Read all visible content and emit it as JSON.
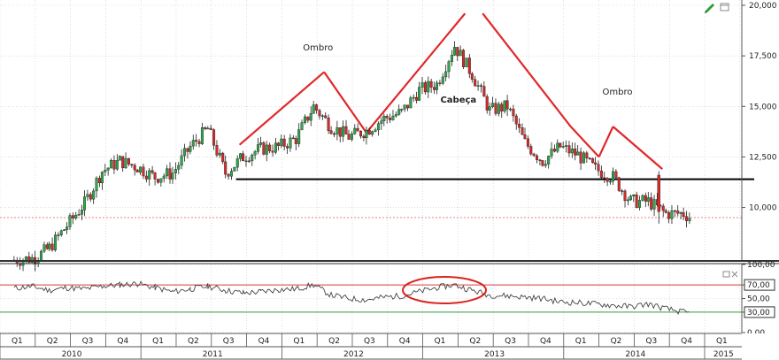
{
  "toolbar": {
    "pencil_icon": "pencil-icon",
    "window_icon": "window-icon"
  },
  "chart_data": [
    {
      "type": "candlestick",
      "title": "",
      "xlabel": "",
      "ylabel": "",
      "ylim": [
        7400,
        20000
      ],
      "yticks": [
        10000,
        12500,
        15000,
        17500,
        20000
      ],
      "ytick_labels": [
        "10,000",
        "12,500",
        "15,000",
        "17,500",
        "20,000"
      ],
      "grid": true,
      "series": [
        {
          "name": "",
          "x_quarter_index": [
            0.0,
            0.6,
            1.0,
            1.5,
            2.0,
            2.5,
            3.0,
            3.5,
            4.0,
            4.5,
            5.0,
            5.5,
            6.0,
            6.5,
            7.0,
            7.5,
            8.0,
            8.5,
            9.0,
            9.5,
            10.0,
            10.5,
            11.0,
            11.5,
            12.0,
            12.5,
            13.0,
            13.5,
            14.0,
            14.5,
            15.0,
            15.5,
            16.0,
            16.5,
            17.0,
            17.5,
            18.0,
            18.5,
            19.0,
            19.2
          ],
          "close": [
            7400,
            7500,
            8000,
            9100,
            10200,
            11800,
            12300,
            12000,
            11500,
            11700,
            13000,
            13900,
            11700,
            12500,
            12900,
            13000,
            13400,
            15000,
            14000,
            13500,
            13800,
            14400,
            14700,
            15800,
            16100,
            18000,
            16600,
            14800,
            15000,
            13200,
            12300,
            13000,
            12600,
            11900,
            11500,
            10300,
            10300,
            9700,
            9700,
            9500
          ]
        }
      ],
      "reference_line": 9500,
      "support_line": 11400,
      "annotations": [
        "Ombro",
        "Cabeça",
        "Ombro"
      ]
    },
    {
      "type": "line",
      "title": "",
      "ylim": [
        0,
        100
      ],
      "yticks": [
        0,
        30,
        50,
        70,
        100
      ],
      "ytick_labels": [
        "0,00",
        "30,00",
        "50,00",
        "70,00",
        "100,00"
      ],
      "highlighted_levels": [
        "70,00",
        "30,00"
      ],
      "upper_level": 70,
      "lower_level": 30,
      "series": [
        {
          "name": "",
          "x_quarter_index": [
            0.0,
            0.5,
            1.0,
            1.5,
            2.0,
            2.5,
            3.0,
            3.5,
            4.0,
            4.5,
            5.0,
            5.5,
            6.0,
            6.5,
            7.0,
            7.5,
            8.0,
            8.5,
            9.0,
            9.5,
            10.0,
            10.5,
            11.0,
            11.5,
            12.0,
            12.5,
            13.0,
            13.5,
            14.0,
            14.5,
            15.0,
            15.5,
            16.0,
            16.5,
            17.0,
            17.5,
            18.0,
            18.5,
            19.0,
            19.2
          ],
          "values": [
            65,
            68,
            62,
            66,
            64,
            68,
            70,
            72,
            66,
            60,
            64,
            68,
            62,
            58,
            60,
            63,
            64,
            70,
            55,
            50,
            48,
            52,
            54,
            60,
            66,
            70,
            62,
            55,
            54,
            52,
            50,
            45,
            44,
            42,
            40,
            38,
            42,
            35,
            30,
            28
          ]
        }
      ]
    }
  ],
  "time_axis": {
    "quarters": [
      "Q1",
      "Q2",
      "Q3",
      "Q4",
      "Q1",
      "Q2",
      "Q3",
      "Q4",
      "Q1",
      "Q2",
      "Q3",
      "Q4",
      "Q1",
      "Q2",
      "Q3",
      "Q4",
      "Q1",
      "Q2",
      "Q3",
      "Q4",
      "Q1"
    ],
    "years": [
      "2010",
      "2011",
      "2012",
      "2013",
      "2014",
      "2015"
    ],
    "years_quarter_count": [
      4,
      4,
      4,
      4,
      4,
      1
    ]
  }
}
